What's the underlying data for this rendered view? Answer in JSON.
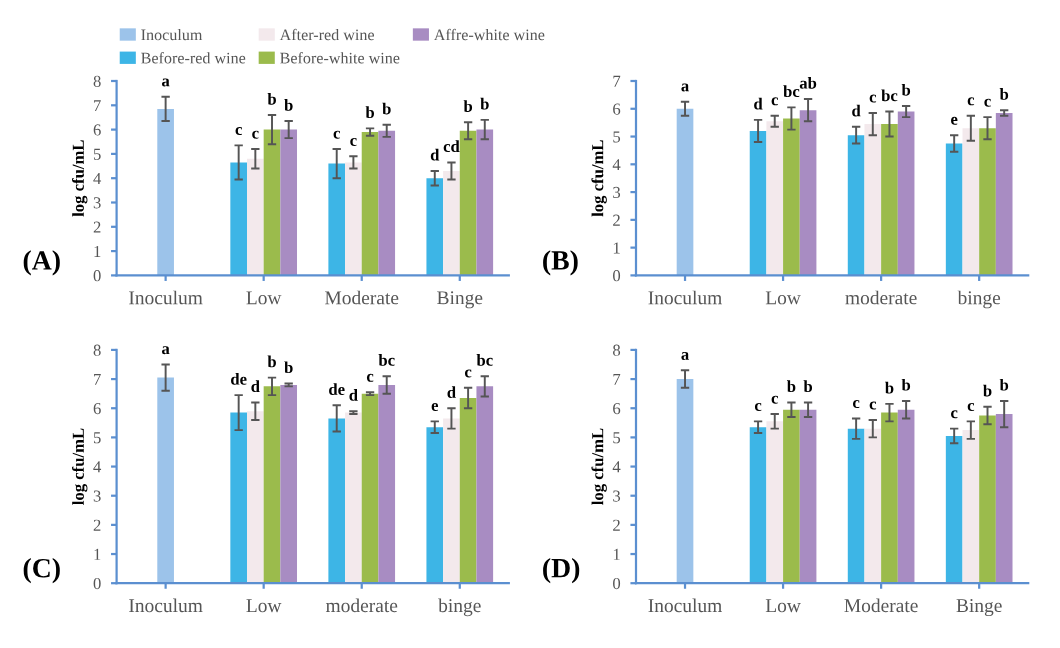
{
  "chart_data": [
    {
      "type": "bar",
      "categories": [
        "Inoculum",
        "Low",
        "Moderate",
        "Binge"
      ],
      "ylabel": "log cfu/mL",
      "ylim": [
        0,
        8
      ],
      "yticks": [
        0,
        1,
        2,
        3,
        4,
        5,
        6,
        7,
        8
      ],
      "legend": "top",
      "annotations": [
        "(A)"
      ],
      "series": [
        {
          "name": "Inoculum",
          "color": "#9cc3ea",
          "values": [
            6.85,
            null,
            null,
            null
          ],
          "errors": [
            0.5,
            null,
            null,
            null
          ],
          "value_labels": [
            "a",
            null,
            null,
            null
          ]
        },
        {
          "name": "Before-red wine",
          "color": "#3db5e6",
          "values": [
            null,
            4.65,
            4.6,
            4.0
          ],
          "errors": [
            null,
            0.7,
            0.6,
            0.3
          ],
          "value_labels": [
            null,
            "c",
            "c",
            "d"
          ]
        },
        {
          "name": "After-red wine",
          "color": "#f3e9ec",
          "values": [
            null,
            4.8,
            4.65,
            4.3
          ],
          "errors": [
            null,
            0.4,
            0.25,
            0.35
          ],
          "value_labels": [
            null,
            "c",
            "c",
            "cd"
          ]
        },
        {
          "name": "Before-white wine",
          "color": "#9bbb4c",
          "values": [
            null,
            6.0,
            5.9,
            5.95
          ],
          "errors": [
            null,
            0.6,
            0.15,
            0.35
          ],
          "value_labels": [
            null,
            "b",
            "b",
            "b"
          ]
        },
        {
          "name": "Affre-white wine",
          "color": "#a88cc2",
          "values": [
            null,
            6.0,
            5.95,
            6.0
          ],
          "errors": [
            null,
            0.35,
            0.25,
            0.4
          ],
          "value_labels": [
            null,
            "b",
            "b",
            "b"
          ]
        }
      ]
    },
    {
      "type": "bar",
      "categories": [
        "Inoculum",
        "Low",
        "moderate",
        "binge"
      ],
      "ylabel": "log cfu/mL",
      "ylim": [
        0,
        7
      ],
      "yticks": [
        0,
        1,
        2,
        3,
        4,
        5,
        6,
        7
      ],
      "annotations": [
        "(B)"
      ],
      "series": [
        {
          "color": "#9cc3ea",
          "values": [
            6.0,
            null,
            null,
            null
          ],
          "errors": [
            0.25,
            null,
            null,
            null
          ],
          "value_labels": [
            "a",
            null,
            null,
            null
          ]
        },
        {
          "color": "#3db5e6",
          "values": [
            null,
            5.2,
            5.05,
            4.75
          ],
          "errors": [
            null,
            0.4,
            0.3,
            0.3
          ],
          "value_labels": [
            null,
            "d",
            "d",
            "e"
          ]
        },
        {
          "color": "#f3e9ec",
          "values": [
            null,
            5.55,
            5.45,
            5.3
          ],
          "errors": [
            null,
            0.2,
            0.4,
            0.45
          ],
          "value_labels": [
            null,
            "c",
            "c",
            "c"
          ]
        },
        {
          "color": "#9bbb4c",
          "values": [
            null,
            5.65,
            5.45,
            5.3
          ],
          "errors": [
            null,
            0.4,
            0.45,
            0.4
          ],
          "value_labels": [
            null,
            "bc",
            "bc",
            "c"
          ]
        },
        {
          "color": "#a88cc2",
          "values": [
            null,
            5.95,
            5.9,
            5.85
          ],
          "errors": [
            null,
            0.4,
            0.2,
            0.1
          ],
          "value_labels": [
            null,
            "ab",
            "b",
            "b"
          ]
        }
      ]
    },
    {
      "type": "bar",
      "categories": [
        "Inoculum",
        "Low",
        "moderate",
        "binge"
      ],
      "ylabel": "log cfu/mL",
      "ylim": [
        0,
        8
      ],
      "yticks": [
        0,
        1,
        2,
        3,
        4,
        5,
        6,
        7,
        8
      ],
      "annotations": [
        "(C)"
      ],
      "series": [
        {
          "color": "#9cc3ea",
          "values": [
            7.05,
            null,
            null,
            null
          ],
          "errors": [
            0.45,
            null,
            null,
            null
          ],
          "value_labels": [
            "a",
            null,
            null,
            null
          ]
        },
        {
          "color": "#3db5e6",
          "values": [
            null,
            5.85,
            5.65,
            5.35
          ],
          "errors": [
            null,
            0.6,
            0.45,
            0.2
          ],
          "value_labels": [
            null,
            "de",
            "de",
            "e"
          ]
        },
        {
          "color": "#f3e9ec",
          "values": [
            null,
            5.9,
            5.85,
            5.65
          ],
          "errors": [
            null,
            0.3,
            0.05,
            0.35
          ],
          "value_labels": [
            null,
            "d",
            "d",
            "d"
          ]
        },
        {
          "color": "#9bbb4c",
          "values": [
            null,
            6.75,
            6.5,
            6.35
          ],
          "errors": [
            null,
            0.3,
            0.05,
            0.35
          ],
          "value_labels": [
            null,
            "b",
            "c",
            "c"
          ]
        },
        {
          "color": "#a88cc2",
          "values": [
            null,
            6.8,
            6.8,
            6.75
          ],
          "errors": [
            null,
            0.05,
            0.3,
            0.35
          ],
          "value_labels": [
            null,
            "b",
            "bc",
            "bc"
          ]
        }
      ]
    },
    {
      "type": "bar",
      "categories": [
        "Inoculum",
        "Low",
        "Moderate",
        "Binge"
      ],
      "ylabel": "log cfu/mL",
      "ylim": [
        0,
        8
      ],
      "yticks": [
        0,
        1,
        2,
        3,
        4,
        5,
        6,
        7,
        8
      ],
      "annotations": [
        "(D)"
      ],
      "series": [
        {
          "color": "#9cc3ea",
          "values": [
            7.0,
            null,
            null,
            null
          ],
          "errors": [
            0.3,
            null,
            null,
            null
          ],
          "value_labels": [
            "a",
            null,
            null,
            null
          ]
        },
        {
          "color": "#3db5e6",
          "values": [
            null,
            5.35,
            5.3,
            5.05
          ],
          "errors": [
            null,
            0.2,
            0.35,
            0.25
          ],
          "value_labels": [
            null,
            "c",
            "c",
            "c"
          ]
        },
        {
          "color": "#f3e9ec",
          "values": [
            null,
            5.55,
            5.3,
            5.25
          ],
          "errors": [
            null,
            0.25,
            0.3,
            0.3
          ],
          "value_labels": [
            null,
            "c",
            "c",
            "c"
          ]
        },
        {
          "color": "#9bbb4c",
          "values": [
            null,
            5.95,
            5.85,
            5.75
          ],
          "errors": [
            null,
            0.25,
            0.3,
            0.3
          ],
          "value_labels": [
            null,
            "b",
            "b",
            "b"
          ]
        },
        {
          "color": "#a88cc2",
          "values": [
            null,
            5.95,
            5.95,
            5.8
          ],
          "errors": [
            null,
            0.25,
            0.3,
            0.45
          ],
          "value_labels": [
            null,
            "b",
            "b",
            "b"
          ]
        }
      ]
    }
  ]
}
